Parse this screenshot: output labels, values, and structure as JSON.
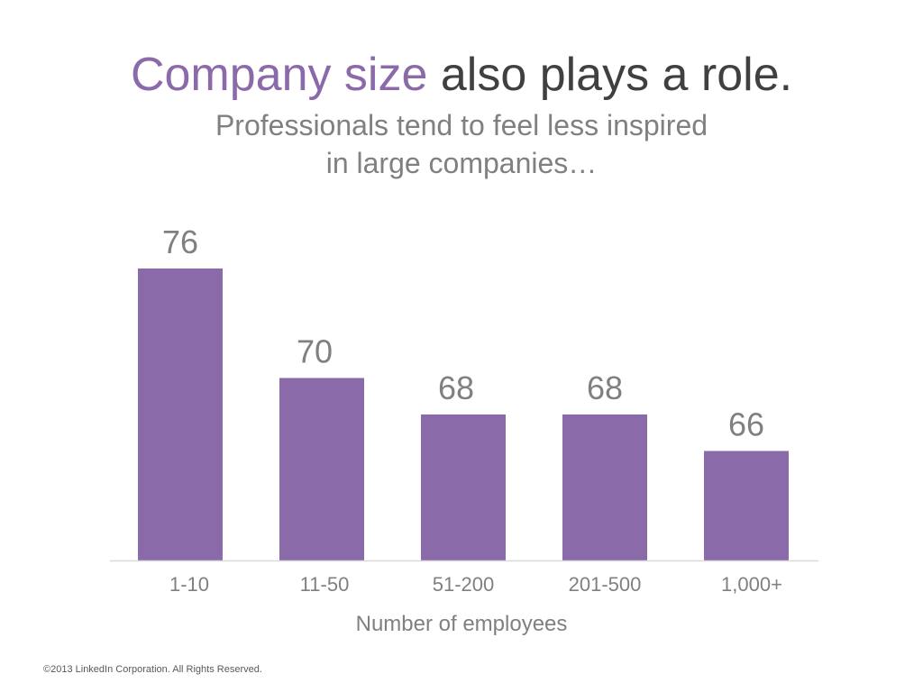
{
  "slide": {
    "title_accent": "Company size",
    "title_rest": " also plays a role.",
    "subtitle_line1": "Professionals tend to feel less inspired",
    "subtitle_line2": "in large companies…",
    "copyright": "©2013 LinkedIn Corporation. All Rights Reserved."
  },
  "colors": {
    "accent": "#8b6aaa",
    "title": "#404040",
    "text": "#808080"
  },
  "chart_data": {
    "type": "bar",
    "categories": [
      "1-10",
      "11-50",
      "51-200",
      "201-500",
      "1,000+"
    ],
    "values": [
      76,
      70,
      68,
      68,
      66
    ],
    "data_labels": [
      "76",
      "70",
      "68",
      "68",
      "66"
    ],
    "title": "",
    "xlabel": "Number of employees",
    "ylabel": "",
    "ylim": [
      60,
      77
    ],
    "grid": false,
    "legend": "none",
    "bar_color": "#8b6aaa"
  }
}
